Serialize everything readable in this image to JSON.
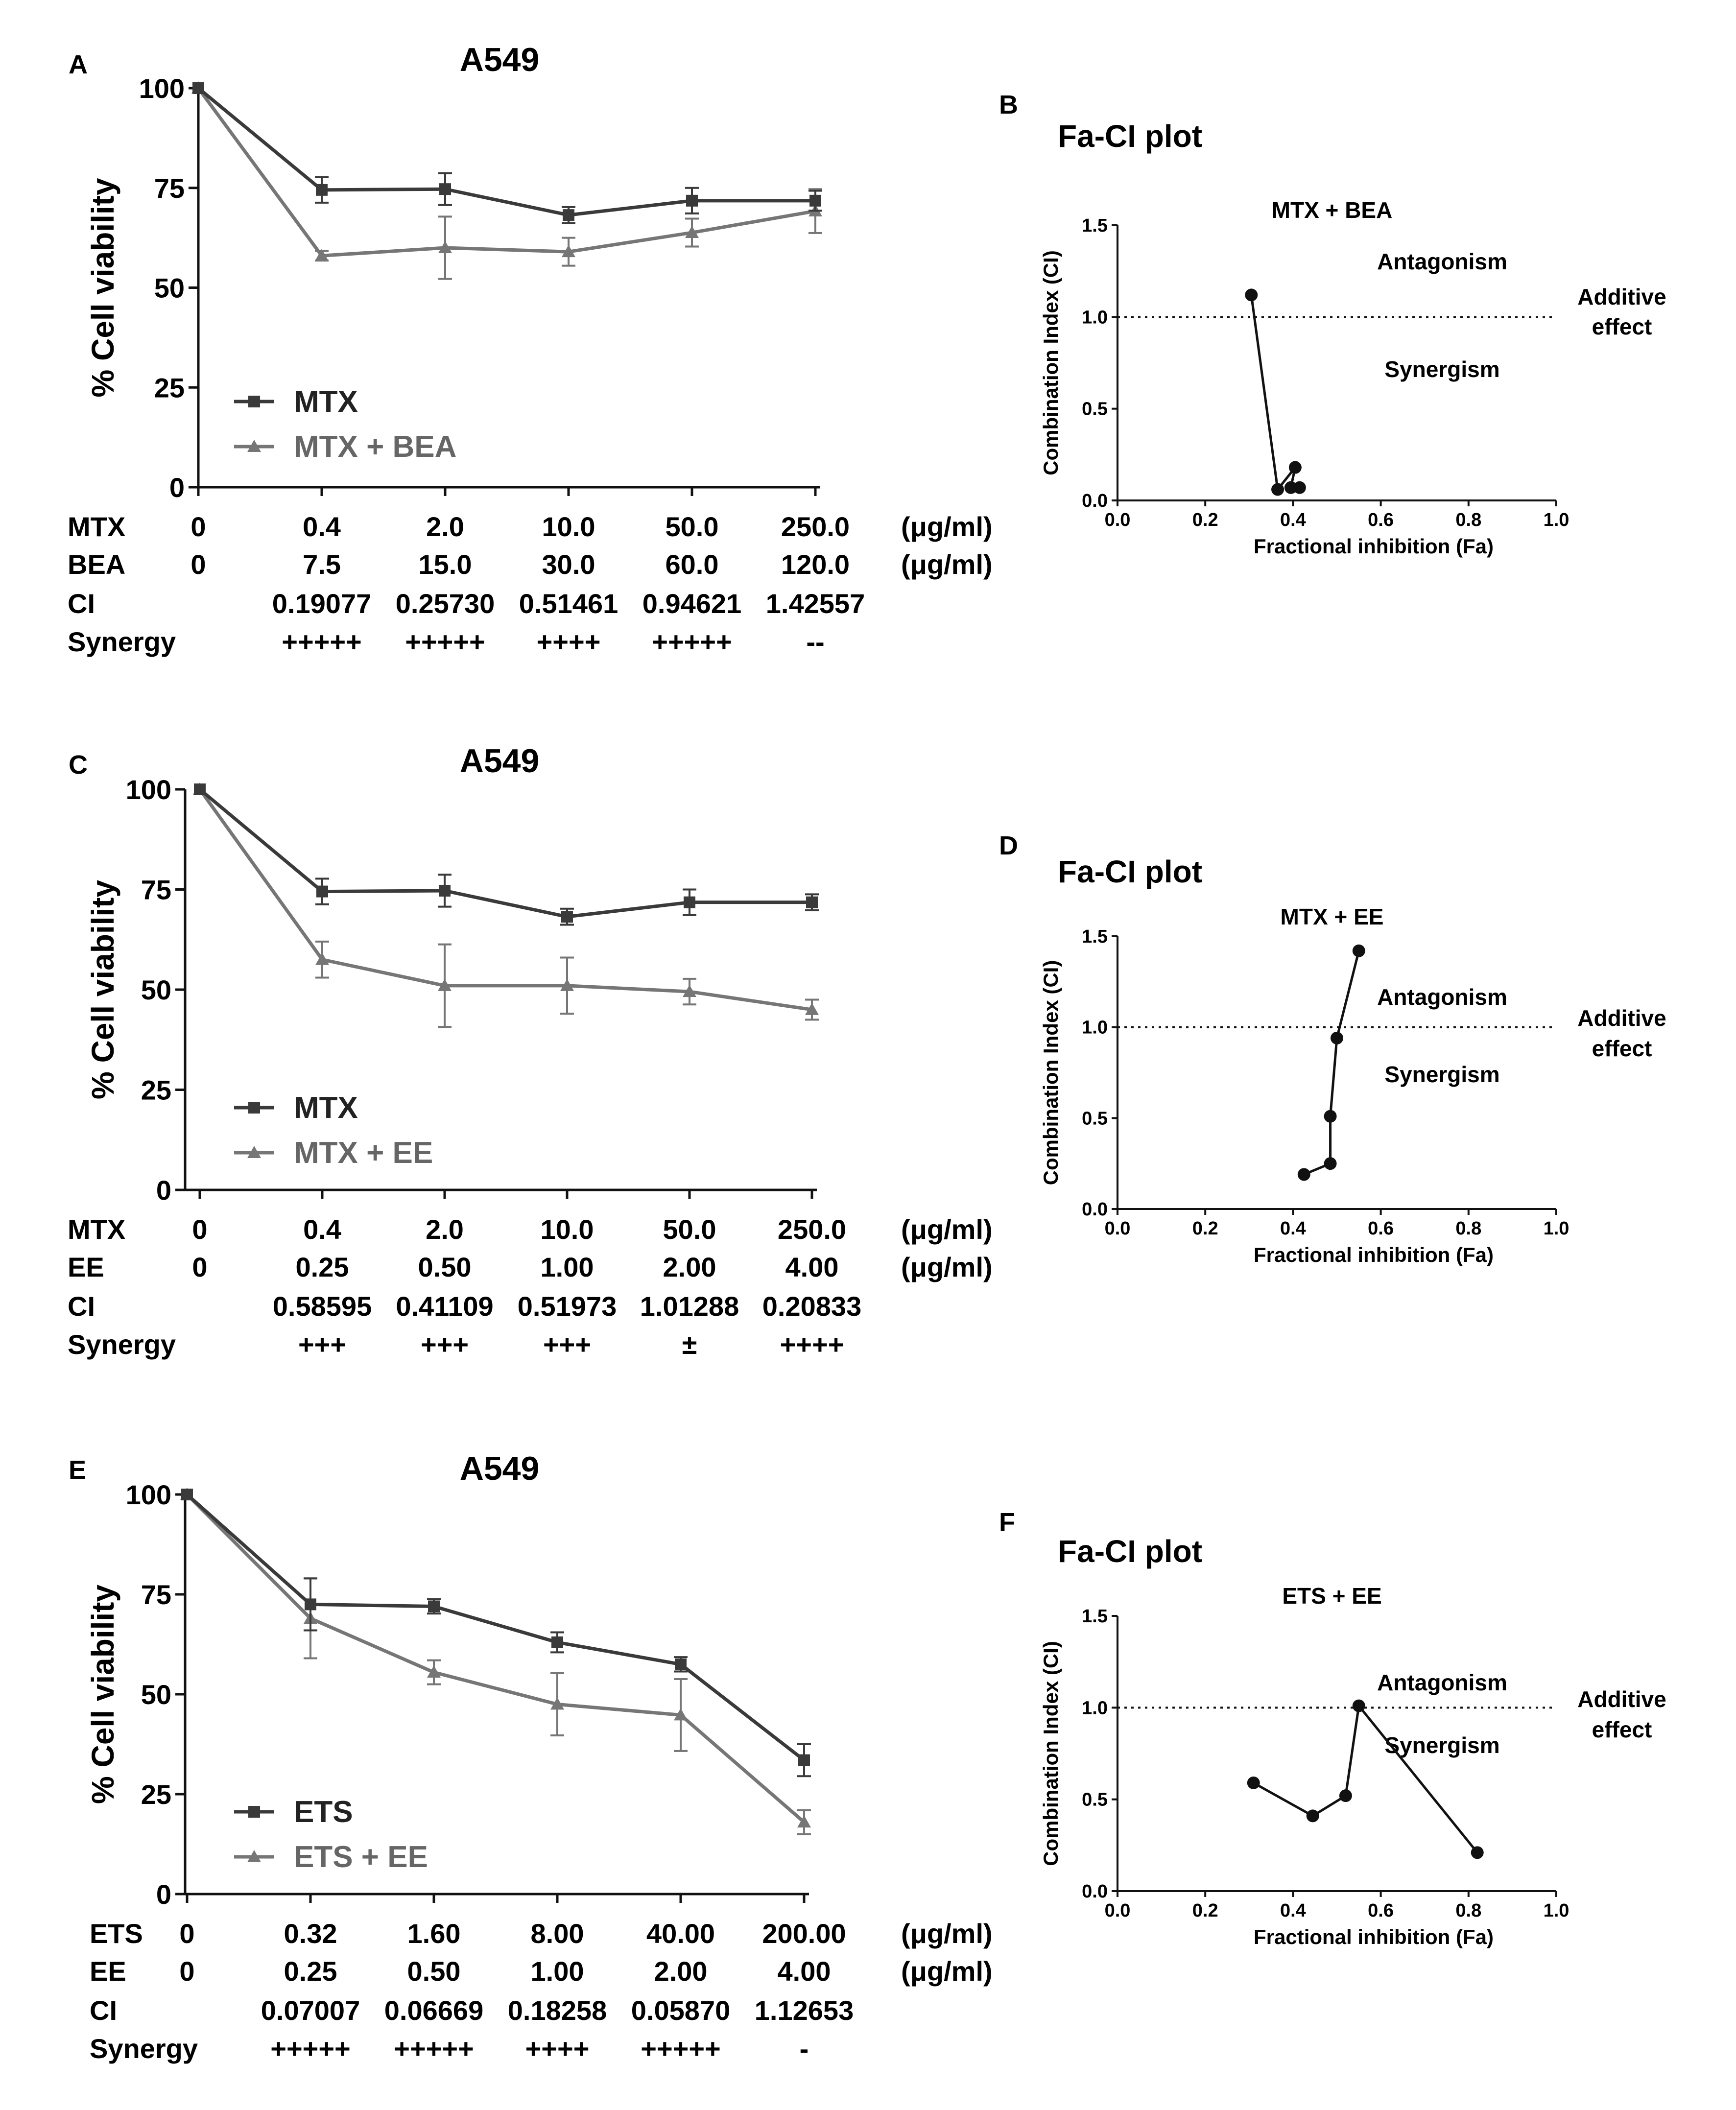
{
  "figure": {
    "panels": [
      {
        "letter": "A",
        "title": "A549",
        "ylabel": "% Cell viability",
        "yticks": [
          "0",
          "25",
          "50",
          "75",
          "100"
        ],
        "legend": [
          "MTX",
          "MTX + BEA"
        ],
        "table": {
          "rows": [
            {
              "label": "MTX",
              "values": [
                "0",
                "0.4",
                "2.0",
                "10.0",
                "50.0",
                "250.0"
              ],
              "unit": "(μg/ml)"
            },
            {
              "label": "BEA",
              "values": [
                "0",
                "7.5",
                "15.0",
                "30.0",
                "60.0",
                "120.0"
              ],
              "unit": "(μg/ml)"
            },
            {
              "label": "CI",
              "values": [
                "",
                "0.19077",
                "0.25730",
                "0.51461",
                "0.94621",
                "1.42557"
              ],
              "unit": ""
            },
            {
              "label": "Synergy",
              "values": [
                "",
                "+++++",
                "+++++",
                "++++",
                "+++++",
                "--"
              ],
              "unit": ""
            }
          ]
        }
      },
      {
        "letter": "C",
        "title": "A549",
        "ylabel": "% Cell viability",
        "yticks": [
          "0",
          "25",
          "50",
          "75",
          "100"
        ],
        "legend": [
          "MTX",
          "MTX + EE"
        ],
        "table": {
          "rows": [
            {
              "label": "MTX",
              "values": [
                "0",
                "0.4",
                "2.0",
                "10.0",
                "50.0",
                "250.0"
              ],
              "unit": "(μg/ml)"
            },
            {
              "label": "EE",
              "values": [
                "0",
                "0.25",
                "0.50",
                "1.00",
                "2.00",
                "4.00"
              ],
              "unit": "(μg/ml)"
            },
            {
              "label": "CI",
              "values": [
                "",
                "0.58595",
                "0.41109",
                "0.51973",
                "1.01288",
                "0.20833"
              ],
              "unit": ""
            },
            {
              "label": "Synergy",
              "values": [
                "",
                "+++",
                "+++",
                "+++",
                "±",
                "++++"
              ],
              "unit": ""
            }
          ]
        }
      },
      {
        "letter": "E",
        "title": "A549",
        "ylabel": "% Cell viability",
        "yticks": [
          "0",
          "25",
          "50",
          "75",
          "100"
        ],
        "legend": [
          "ETS",
          "ETS + EE"
        ],
        "table": {
          "rows": [
            {
              "label": "ETS",
              "values": [
                "0",
                "0.32",
                "1.60",
                "8.00",
                "40.00",
                "200.00"
              ],
              "unit": "(μg/ml)"
            },
            {
              "label": "EE",
              "values": [
                "0",
                "0.25",
                "0.50",
                "1.00",
                "2.00",
                "4.00"
              ],
              "unit": "(μg/ml)"
            },
            {
              "label": "CI",
              "values": [
                "",
                "0.07007",
                "0.06669",
                "0.18258",
                "0.05870",
                "1.12653"
              ],
              "unit": ""
            },
            {
              "label": "Synergy",
              "values": [
                "",
                "+++++",
                "+++++",
                "++++",
                "+++++",
                "-"
              ],
              "unit": ""
            }
          ]
        }
      }
    ],
    "fa_panels": [
      {
        "letter": "B",
        "title": "Fa-CI plot",
        "subtitle": "MTX + BEA"
      },
      {
        "letter": "D",
        "title": "Fa-CI plot",
        "subtitle": "MTX + EE"
      },
      {
        "letter": "F",
        "title": "Fa-CI plot",
        "subtitle": "ETS + EE"
      }
    ],
    "fa_common": {
      "ylabel": "Combination Index (CI)",
      "xlabel": "Fractional inhibition (Fa)",
      "antagonism": "Antagonism",
      "synergism": "Synergism",
      "additive_line1": "Additive",
      "additive_line2": "effect",
      "xticks": [
        "0.0",
        "0.2",
        "0.4",
        "0.6",
        "0.8",
        "1.0"
      ],
      "yticks": [
        "0.0",
        "0.5",
        "1.0",
        "1.5"
      ]
    }
  },
  "chart_data": [
    {
      "type": "line",
      "panel": "A",
      "title": "A549",
      "ylabel": "% Cell viability",
      "xlabel": "",
      "ylim": [
        0,
        100
      ],
      "categories": [
        "0",
        "0.4",
        "2.0",
        "10.0",
        "50.0",
        "250.0"
      ],
      "series": [
        {
          "name": "MTX",
          "marker": "square",
          "color": "#3a3a3a",
          "values": [
            100,
            74.5,
            74.7,
            68.2,
            71.8,
            71.8
          ],
          "errors": [
            0,
            3.2,
            4.0,
            2.0,
            3.2,
            2.5
          ]
        },
        {
          "name": "MTX + BEA",
          "marker": "triangle",
          "color": "#767676",
          "values": [
            100,
            58.0,
            60.0,
            59.0,
            63.8,
            69.2
          ],
          "errors": [
            0,
            1.2,
            7.8,
            3.5,
            3.5,
            5.5
          ]
        }
      ]
    },
    {
      "type": "line",
      "panel": "C",
      "title": "A549",
      "ylabel": "% Cell viability",
      "xlabel": "",
      "ylim": [
        0,
        100
      ],
      "categories": [
        "0",
        "0.4",
        "2.0",
        "10.0",
        "50.0",
        "250.0"
      ],
      "series": [
        {
          "name": "MTX",
          "marker": "square",
          "color": "#3a3a3a",
          "values": [
            100,
            74.5,
            74.7,
            68.2,
            71.8,
            71.8
          ],
          "errors": [
            0,
            3.2,
            4.0,
            2.0,
            3.2,
            2.0
          ]
        },
        {
          "name": "MTX + EE",
          "marker": "triangle",
          "color": "#767676",
          "values": [
            100,
            57.5,
            51.0,
            51.0,
            49.5,
            45.0
          ],
          "errors": [
            0,
            4.5,
            10.3,
            7.0,
            3.2,
            2.5
          ]
        }
      ]
    },
    {
      "type": "line",
      "panel": "E",
      "title": "A549",
      "ylabel": "% Cell viability",
      "xlabel": "",
      "ylim": [
        0,
        100
      ],
      "categories": [
        "0",
        "0.32",
        "1.60",
        "8.00",
        "40.00",
        "200.00"
      ],
      "series": [
        {
          "name": "ETS",
          "marker": "square",
          "color": "#3a3a3a",
          "values": [
            100,
            72.5,
            72.0,
            63.0,
            57.5,
            33.5
          ],
          "errors": [
            0,
            6.5,
            1.8,
            2.5,
            1.8,
            4.0
          ]
        },
        {
          "name": "ETS + EE",
          "marker": "triangle",
          "color": "#767676",
          "values": [
            100,
            69.0,
            55.5,
            47.5,
            44.8,
            18.0
          ],
          "errors": [
            0,
            10.0,
            3.0,
            7.8,
            9.0,
            3.0
          ]
        }
      ]
    },
    {
      "type": "scatter",
      "panel": "B",
      "title": "MTX + BEA",
      "xlabel": "Fractional inhibition (Fa)",
      "ylabel": "Combination Index (CI)",
      "xlim": [
        0,
        1.0
      ],
      "ylim": [
        0,
        1.5
      ],
      "reference_line": 1.0,
      "points": [
        [
          0.305,
          1.12
        ],
        [
          0.365,
          0.06
        ],
        [
          0.405,
          0.18
        ],
        [
          0.395,
          0.07
        ],
        [
          0.415,
          0.07
        ]
      ]
    },
    {
      "type": "scatter",
      "panel": "D",
      "title": "MTX + EE",
      "xlabel": "Fractional inhibition (Fa)",
      "ylabel": "Combination Index (CI)",
      "xlim": [
        0,
        1.0
      ],
      "ylim": [
        0,
        1.5
      ],
      "reference_line": 1.0,
      "points": [
        [
          0.425,
          0.19
        ],
        [
          0.485,
          0.25
        ],
        [
          0.485,
          0.51
        ],
        [
          0.5,
          0.94
        ],
        [
          0.55,
          1.42
        ]
      ]
    },
    {
      "type": "scatter",
      "panel": "F",
      "title": "ETS + EE",
      "xlabel": "Fractional inhibition (Fa)",
      "ylabel": "Combination Index (CI)",
      "xlim": [
        0,
        1.0
      ],
      "ylim": [
        0,
        1.5
      ],
      "reference_line": 1.0,
      "points": [
        [
          0.31,
          0.59
        ],
        [
          0.445,
          0.41
        ],
        [
          0.52,
          0.52
        ],
        [
          0.55,
          1.01
        ],
        [
          0.82,
          0.21
        ]
      ]
    }
  ]
}
